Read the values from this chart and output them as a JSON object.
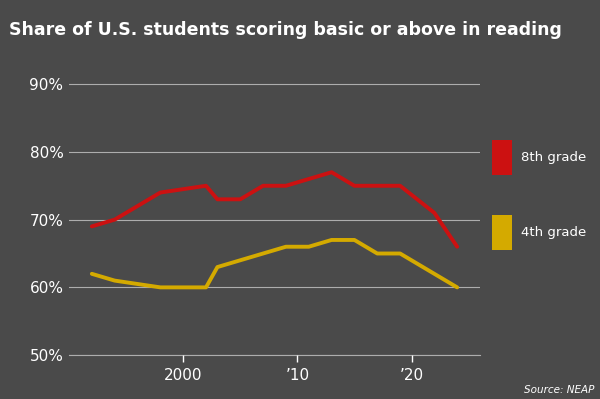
{
  "title": "Share of U.S. students scoring basic or above in reading",
  "title_bg_color": "#000000",
  "bg_color": "#4a4a4a",
  "grid_color": "#ffffff",
  "source_text": "Source: NEAP",
  "grade8_years": [
    1992,
    1994,
    1998,
    2002,
    2003,
    2005,
    2007,
    2009,
    2011,
    2013,
    2015,
    2017,
    2019,
    2022,
    2024
  ],
  "grade8_values": [
    69,
    70,
    74,
    75,
    73,
    73,
    75,
    75,
    76,
    77,
    75,
    75,
    75,
    71,
    66
  ],
  "grade4_years": [
    1992,
    1994,
    1998,
    2002,
    2003,
    2005,
    2007,
    2009,
    2011,
    2013,
    2015,
    2017,
    2019,
    2022,
    2024
  ],
  "grade4_values": [
    62,
    61,
    60,
    60,
    63,
    64,
    65,
    66,
    66,
    67,
    67,
    65,
    65,
    62,
    60
  ],
  "grade8_color": "#cc1111",
  "grade4_color": "#d4aa00",
  "line_width": 2.8,
  "ylim": [
    50,
    93
  ],
  "yticks": [
    50,
    60,
    70,
    80,
    90
  ],
  "xlim": [
    1990,
    2026
  ],
  "legend_8th": "8th grade",
  "legend_4th": "4th grade",
  "tick_color": "#ffffff",
  "title_fontsize": 12.5,
  "tick_fontsize": 11
}
